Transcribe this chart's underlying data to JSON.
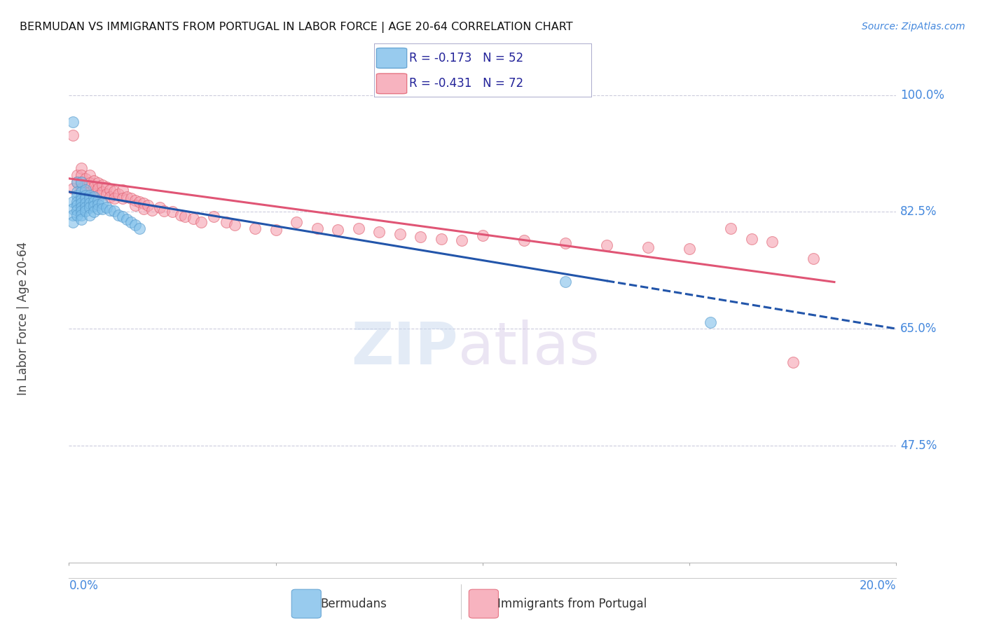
{
  "title": "BERMUDAN VS IMMIGRANTS FROM PORTUGAL IN LABOR FORCE | AGE 20-64 CORRELATION CHART",
  "source": "Source: ZipAtlas.com",
  "ylabel": "In Labor Force | Age 20-64",
  "xlim": [
    0.0,
    0.2
  ],
  "ylim": [
    0.3,
    1.03
  ],
  "yticks": [
    0.475,
    0.65,
    0.825,
    1.0
  ],
  "ytick_labels": [
    "47.5%",
    "65.0%",
    "82.5%",
    "100.0%"
  ],
  "blue_R": "-0.173",
  "blue_N": "52",
  "pink_R": "-0.431",
  "pink_N": "72",
  "legend_label_blue": "Bermudans",
  "legend_label_pink": "Immigrants from Portugal",
  "blue_scatter_color": "#7fbfea",
  "pink_scatter_color": "#f5a0b0",
  "blue_edge_color": "#5599cc",
  "pink_edge_color": "#e06070",
  "blue_line_color": "#2255aa",
  "pink_line_color": "#e05575",
  "axis_color": "#4488dd",
  "grid_color": "#ccccdd",
  "text_color": "#333333",
  "blue_scatter_x": [
    0.001,
    0.001,
    0.001,
    0.001,
    0.001,
    0.002,
    0.002,
    0.002,
    0.002,
    0.002,
    0.002,
    0.002,
    0.003,
    0.003,
    0.003,
    0.003,
    0.003,
    0.003,
    0.003,
    0.003,
    0.003,
    0.004,
    0.004,
    0.004,
    0.004,
    0.004,
    0.004,
    0.005,
    0.005,
    0.005,
    0.005,
    0.005,
    0.006,
    0.006,
    0.006,
    0.006,
    0.007,
    0.007,
    0.007,
    0.008,
    0.008,
    0.009,
    0.01,
    0.011,
    0.012,
    0.013,
    0.014,
    0.015,
    0.016,
    0.017,
    0.12,
    0.155
  ],
  "blue_scatter_y": [
    0.96,
    0.84,
    0.83,
    0.82,
    0.81,
    0.87,
    0.855,
    0.85,
    0.84,
    0.835,
    0.828,
    0.82,
    0.87,
    0.855,
    0.848,
    0.843,
    0.838,
    0.832,
    0.826,
    0.82,
    0.814,
    0.858,
    0.85,
    0.845,
    0.838,
    0.832,
    0.826,
    0.85,
    0.845,
    0.838,
    0.832,
    0.82,
    0.848,
    0.84,
    0.834,
    0.825,
    0.842,
    0.836,
    0.83,
    0.838,
    0.83,
    0.832,
    0.828,
    0.826,
    0.82,
    0.818,
    0.814,
    0.81,
    0.806,
    0.8,
    0.72,
    0.66
  ],
  "pink_scatter_x": [
    0.001,
    0.001,
    0.002,
    0.002,
    0.003,
    0.003,
    0.003,
    0.003,
    0.004,
    0.004,
    0.004,
    0.005,
    0.005,
    0.005,
    0.006,
    0.006,
    0.006,
    0.007,
    0.007,
    0.007,
    0.008,
    0.008,
    0.009,
    0.009,
    0.01,
    0.01,
    0.011,
    0.011,
    0.012,
    0.013,
    0.013,
    0.014,
    0.015,
    0.016,
    0.016,
    0.017,
    0.018,
    0.018,
    0.019,
    0.02,
    0.022,
    0.023,
    0.025,
    0.027,
    0.028,
    0.03,
    0.032,
    0.035,
    0.038,
    0.04,
    0.045,
    0.05,
    0.055,
    0.06,
    0.065,
    0.07,
    0.075,
    0.08,
    0.085,
    0.09,
    0.095,
    0.1,
    0.11,
    0.12,
    0.13,
    0.14,
    0.15,
    0.16,
    0.165,
    0.17,
    0.175,
    0.18
  ],
  "pink_scatter_y": [
    0.94,
    0.86,
    0.88,
    0.87,
    0.89,
    0.88,
    0.87,
    0.86,
    0.875,
    0.865,
    0.855,
    0.88,
    0.868,
    0.855,
    0.872,
    0.862,
    0.852,
    0.868,
    0.86,
    0.85,
    0.865,
    0.855,
    0.862,
    0.852,
    0.858,
    0.848,
    0.856,
    0.845,
    0.852,
    0.858,
    0.845,
    0.848,
    0.845,
    0.842,
    0.835,
    0.84,
    0.838,
    0.83,
    0.835,
    0.828,
    0.832,
    0.826,
    0.825,
    0.82,
    0.818,
    0.815,
    0.81,
    0.818,
    0.81,
    0.806,
    0.8,
    0.798,
    0.81,
    0.8,
    0.798,
    0.8,
    0.795,
    0.792,
    0.788,
    0.785,
    0.782,
    0.79,
    0.782,
    0.778,
    0.775,
    0.772,
    0.77,
    0.8,
    0.785,
    0.78,
    0.6,
    0.755
  ],
  "blue_line_x0": 0.0,
  "blue_line_x1": 0.2,
  "blue_line_y0": 0.855,
  "blue_line_y1": 0.65,
  "pink_line_x0": 0.0,
  "pink_line_x1": 0.185,
  "pink_line_y0": 0.875,
  "pink_line_y1": 0.72
}
